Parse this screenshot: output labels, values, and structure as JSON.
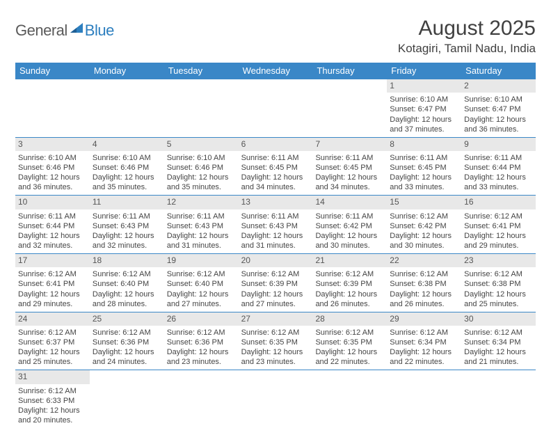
{
  "brand": {
    "part1": "General",
    "part2": "Blue"
  },
  "title": "August 2025",
  "location": "Kotagiri, Tamil Nadu, India",
  "colors": {
    "header_bg": "#3a87c7",
    "header_text": "#ffffff",
    "daynum_bg": "#e8e8e8",
    "week_border": "#3a87c7",
    "body_text": "#444444",
    "title_text": "#404040"
  },
  "day_names": [
    "Sunday",
    "Monday",
    "Tuesday",
    "Wednesday",
    "Thursday",
    "Friday",
    "Saturday"
  ],
  "weeks": [
    [
      null,
      null,
      null,
      null,
      null,
      {
        "n": "1",
        "sr": "6:10 AM",
        "ss": "6:47 PM",
        "dlh": "12",
        "dlm": "37"
      },
      {
        "n": "2",
        "sr": "6:10 AM",
        "ss": "6:47 PM",
        "dlh": "12",
        "dlm": "36"
      }
    ],
    [
      {
        "n": "3",
        "sr": "6:10 AM",
        "ss": "6:46 PM",
        "dlh": "12",
        "dlm": "36"
      },
      {
        "n": "4",
        "sr": "6:10 AM",
        "ss": "6:46 PM",
        "dlh": "12",
        "dlm": "35"
      },
      {
        "n": "5",
        "sr": "6:10 AM",
        "ss": "6:46 PM",
        "dlh": "12",
        "dlm": "35"
      },
      {
        "n": "6",
        "sr": "6:11 AM",
        "ss": "6:45 PM",
        "dlh": "12",
        "dlm": "34"
      },
      {
        "n": "7",
        "sr": "6:11 AM",
        "ss": "6:45 PM",
        "dlh": "12",
        "dlm": "34"
      },
      {
        "n": "8",
        "sr": "6:11 AM",
        "ss": "6:45 PM",
        "dlh": "12",
        "dlm": "33"
      },
      {
        "n": "9",
        "sr": "6:11 AM",
        "ss": "6:44 PM",
        "dlh": "12",
        "dlm": "33"
      }
    ],
    [
      {
        "n": "10",
        "sr": "6:11 AM",
        "ss": "6:44 PM",
        "dlh": "12",
        "dlm": "32"
      },
      {
        "n": "11",
        "sr": "6:11 AM",
        "ss": "6:43 PM",
        "dlh": "12",
        "dlm": "32"
      },
      {
        "n": "12",
        "sr": "6:11 AM",
        "ss": "6:43 PM",
        "dlh": "12",
        "dlm": "31"
      },
      {
        "n": "13",
        "sr": "6:11 AM",
        "ss": "6:43 PM",
        "dlh": "12",
        "dlm": "31"
      },
      {
        "n": "14",
        "sr": "6:11 AM",
        "ss": "6:42 PM",
        "dlh": "12",
        "dlm": "30"
      },
      {
        "n": "15",
        "sr": "6:12 AM",
        "ss": "6:42 PM",
        "dlh": "12",
        "dlm": "30"
      },
      {
        "n": "16",
        "sr": "6:12 AM",
        "ss": "6:41 PM",
        "dlh": "12",
        "dlm": "29"
      }
    ],
    [
      {
        "n": "17",
        "sr": "6:12 AM",
        "ss": "6:41 PM",
        "dlh": "12",
        "dlm": "29"
      },
      {
        "n": "18",
        "sr": "6:12 AM",
        "ss": "6:40 PM",
        "dlh": "12",
        "dlm": "28"
      },
      {
        "n": "19",
        "sr": "6:12 AM",
        "ss": "6:40 PM",
        "dlh": "12",
        "dlm": "27"
      },
      {
        "n": "20",
        "sr": "6:12 AM",
        "ss": "6:39 PM",
        "dlh": "12",
        "dlm": "27"
      },
      {
        "n": "21",
        "sr": "6:12 AM",
        "ss": "6:39 PM",
        "dlh": "12",
        "dlm": "26"
      },
      {
        "n": "22",
        "sr": "6:12 AM",
        "ss": "6:38 PM",
        "dlh": "12",
        "dlm": "26"
      },
      {
        "n": "23",
        "sr": "6:12 AM",
        "ss": "6:38 PM",
        "dlh": "12",
        "dlm": "25"
      }
    ],
    [
      {
        "n": "24",
        "sr": "6:12 AM",
        "ss": "6:37 PM",
        "dlh": "12",
        "dlm": "25"
      },
      {
        "n": "25",
        "sr": "6:12 AM",
        "ss": "6:36 PM",
        "dlh": "12",
        "dlm": "24"
      },
      {
        "n": "26",
        "sr": "6:12 AM",
        "ss": "6:36 PM",
        "dlh": "12",
        "dlm": "23"
      },
      {
        "n": "27",
        "sr": "6:12 AM",
        "ss": "6:35 PM",
        "dlh": "12",
        "dlm": "23"
      },
      {
        "n": "28",
        "sr": "6:12 AM",
        "ss": "6:35 PM",
        "dlh": "12",
        "dlm": "22"
      },
      {
        "n": "29",
        "sr": "6:12 AM",
        "ss": "6:34 PM",
        "dlh": "12",
        "dlm": "22"
      },
      {
        "n": "30",
        "sr": "6:12 AM",
        "ss": "6:34 PM",
        "dlh": "12",
        "dlm": "21"
      }
    ],
    [
      {
        "n": "31",
        "sr": "6:12 AM",
        "ss": "6:33 PM",
        "dlh": "12",
        "dlm": "20"
      },
      null,
      null,
      null,
      null,
      null,
      null
    ]
  ],
  "labels": {
    "sunrise": "Sunrise:",
    "sunset": "Sunset:",
    "daylight": "Daylight:",
    "hours": "hours",
    "and": "and",
    "minutes": "minutes."
  }
}
